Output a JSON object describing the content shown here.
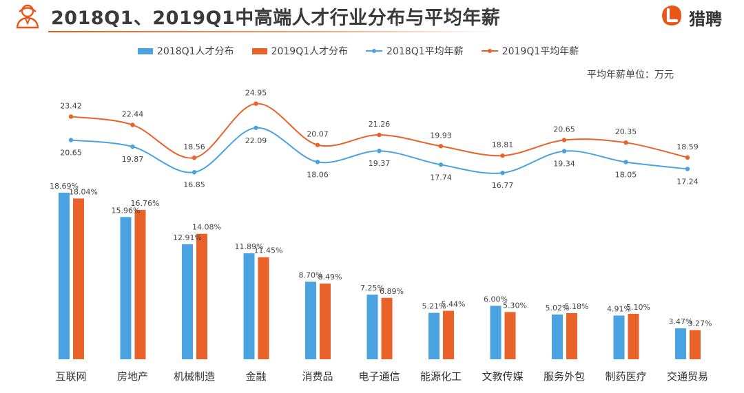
{
  "header": {
    "title": "2018Q1、2019Q1中高端人才行业分布与平均年薪",
    "brand_text": "猎聘",
    "brand_color": "#e8561a",
    "icons": [
      "user-avatar-icon",
      "liepin-logo-icon"
    ]
  },
  "legend": {
    "items": [
      {
        "label": "2018Q1人才分布",
        "type": "bar",
        "color": "#4aa3e0"
      },
      {
        "label": "2019Q1人才分布",
        "type": "bar",
        "color": "#e8622a"
      },
      {
        "label": "2018Q1平均年薪",
        "type": "line",
        "color": "#4aa3e0"
      },
      {
        "label": "2019Q1平均年薪",
        "type": "line",
        "color": "#e8622a"
      }
    ]
  },
  "unit_note": "平均年薪单位：万元",
  "chart_data": {
    "type": "bar",
    "title": "2018Q1、2019Q1中高端人才行业分布与平均年薪",
    "categories": [
      "互联网",
      "房地产",
      "机械制造",
      "金融",
      "消费品",
      "电子通信",
      "能源化工",
      "文教传媒",
      "服务外包",
      "制药医疗",
      "交通贸易"
    ],
    "bar_series": [
      {
        "name": "2018Q1人才分布",
        "color": "#4aa3e0",
        "values": [
          18.69,
          15.96,
          12.91,
          11.89,
          8.7,
          7.25,
          5.21,
          6.0,
          5.02,
          4.91,
          3.47
        ],
        "labels": [
          "18.69%",
          "15.96%",
          "12.91%",
          "11.89%",
          "8.70%",
          "7.25%",
          "5.21%",
          "6.00%",
          "5.02%",
          "4.91%",
          "3.47%"
        ]
      },
      {
        "name": "2019Q1人才分布",
        "color": "#e8622a",
        "values": [
          18.04,
          16.76,
          14.08,
          11.45,
          8.49,
          6.89,
          5.44,
          5.3,
          5.18,
          5.1,
          3.27
        ],
        "labels": [
          "18.04%",
          "16.76%",
          "14.08%",
          "11.45%",
          "8.49%",
          "6.89%",
          "5.44%",
          "5.30%",
          "5.18%",
          "5.10%",
          "3.27%"
        ]
      }
    ],
    "line_series": [
      {
        "name": "2018Q1平均年薪",
        "color": "#4aa3e0",
        "values": [
          20.65,
          19.87,
          16.85,
          22.09,
          18.06,
          19.37,
          17.74,
          16.77,
          19.34,
          18.05,
          17.24
        ],
        "labels": [
          "20.65",
          "19.87",
          "16.85",
          "22.09",
          "18.06",
          "19.37",
          "17.74",
          "16.77",
          "19.34",
          "18.05",
          "17.24"
        ]
      },
      {
        "name": "2019Q1平均年薪",
        "color": "#e8622a",
        "values": [
          23.42,
          22.44,
          18.56,
          24.95,
          20.07,
          21.26,
          19.93,
          18.81,
          20.65,
          20.35,
          18.59
        ],
        "labels": [
          "23.42",
          "22.44",
          "18.56",
          "24.95",
          "20.07",
          "21.26",
          "19.93",
          "18.81",
          "20.65",
          "20.35",
          "18.59"
        ]
      }
    ],
    "grid": false,
    "axes_visible": false,
    "legend_position": "top"
  }
}
